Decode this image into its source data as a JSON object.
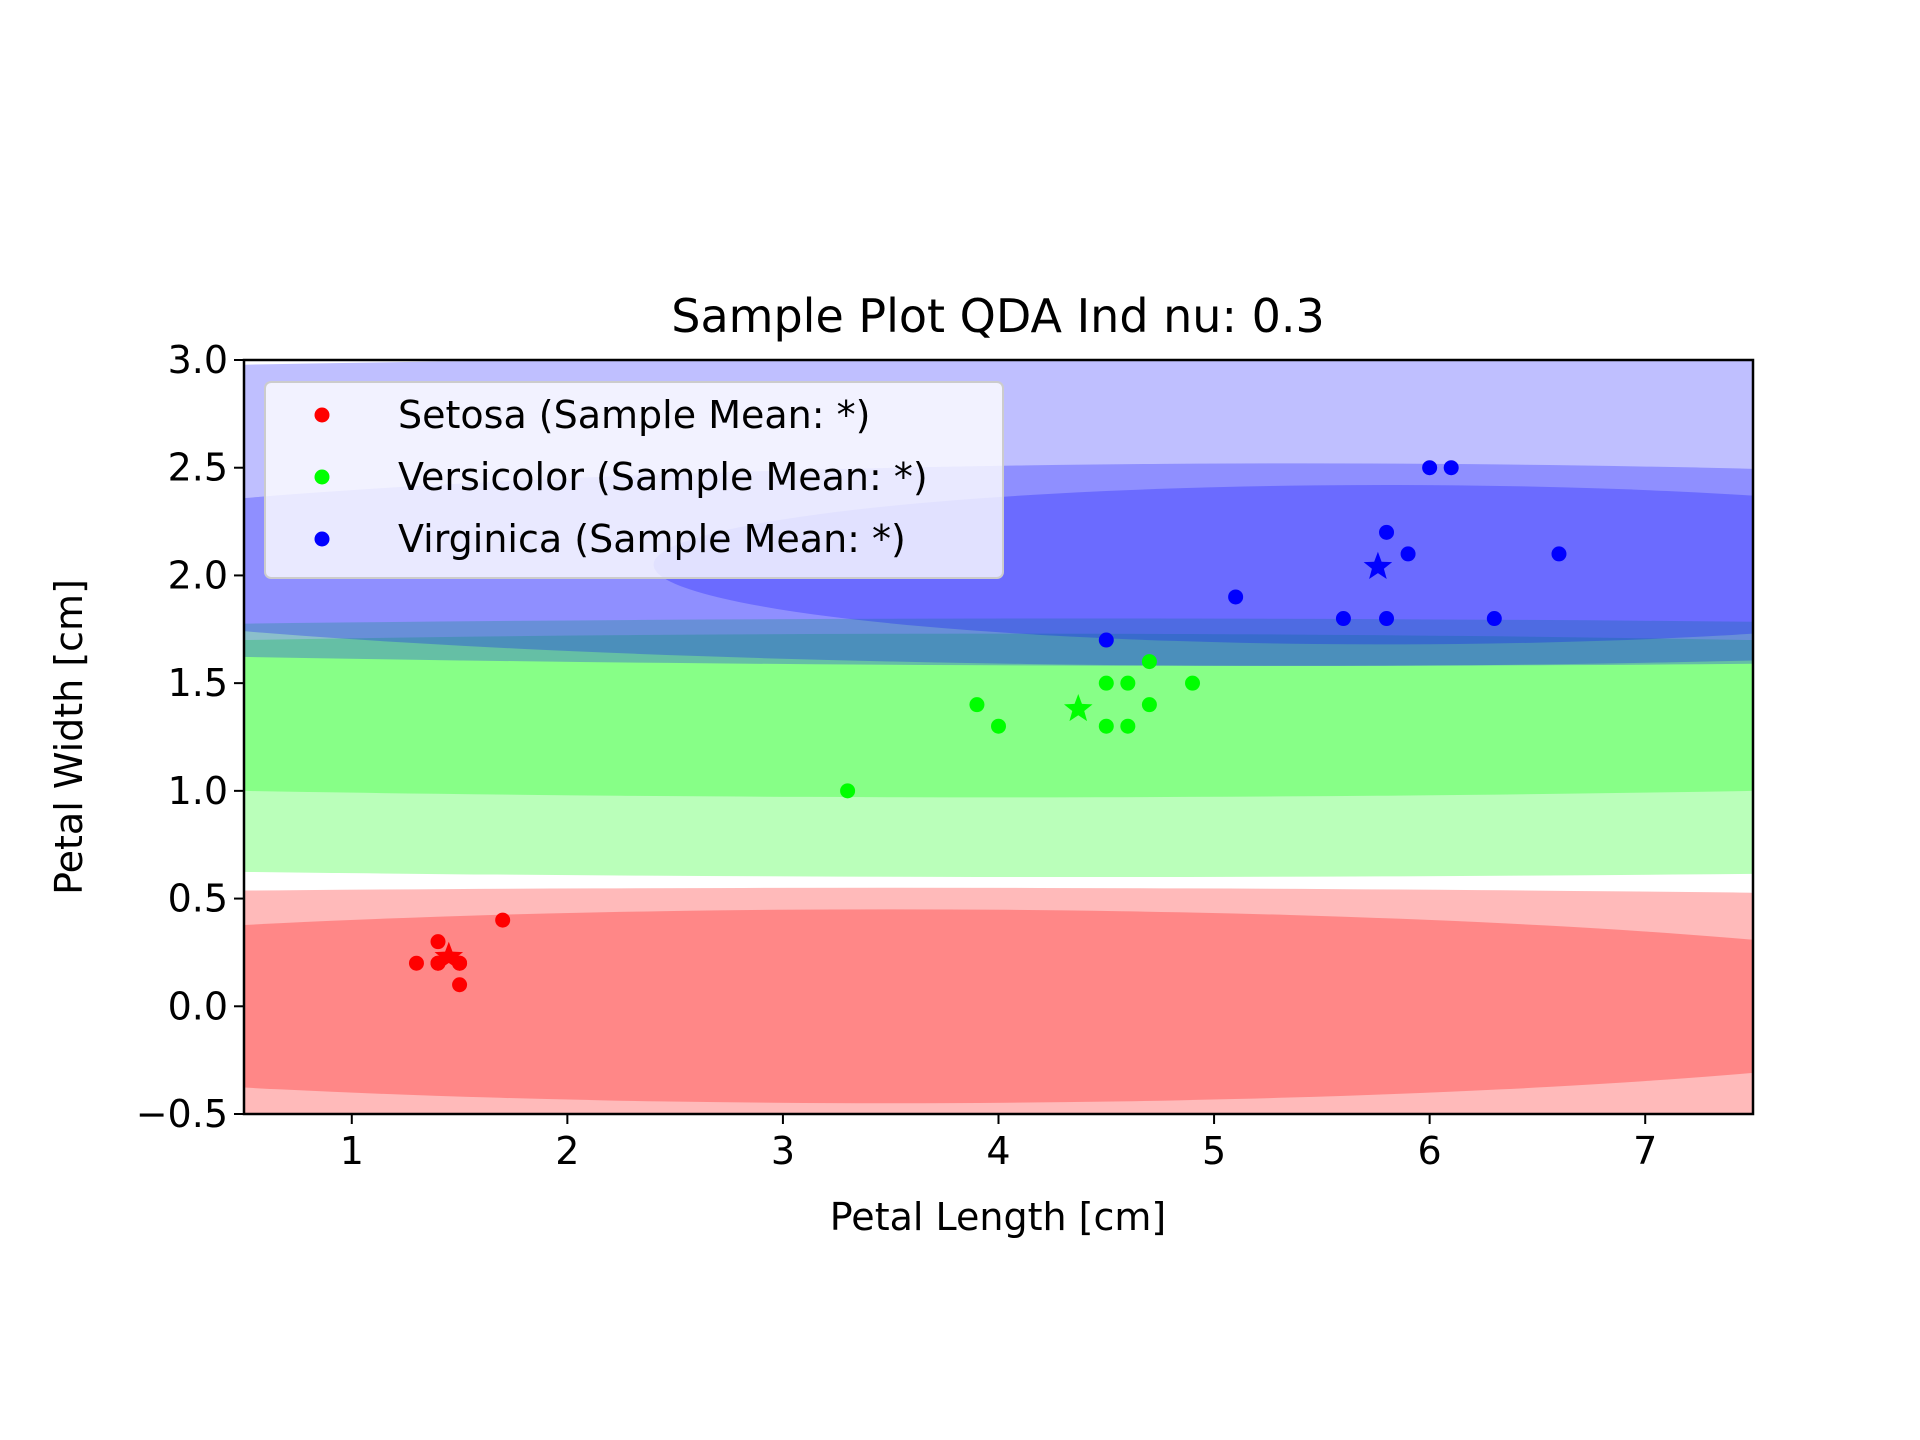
{
  "chart_data": {
    "type": "scatter",
    "title": "Sample Plot QDA Ind nu: 0.3",
    "xlabel": "Petal Length [cm]",
    "ylabel": "Petal Width [cm]",
    "xlim": [
      0.5,
      7.5
    ],
    "ylim": [
      -0.5,
      3.0
    ],
    "xticks": [
      1,
      2,
      3,
      4,
      5,
      6,
      7
    ],
    "xtick_labels": [
      "1",
      "2",
      "3",
      "4",
      "5",
      "6",
      "7"
    ],
    "yticks": [
      -0.5,
      0.0,
      0.5,
      1.0,
      1.5,
      2.0,
      2.5,
      3.0
    ],
    "ytick_labels": [
      "−0.5",
      "0.0",
      "0.5",
      "1.0",
      "1.5",
      "2.0",
      "2.5",
      "3.0"
    ],
    "grid": false,
    "legend_position": "top-left",
    "series": [
      {
        "name": "Setosa (Sample Mean: *)",
        "color": "#ff0000",
        "mean": [
          1.45,
          0.23
        ],
        "points": [
          [
            1.3,
            0.2
          ],
          [
            1.4,
            0.3
          ],
          [
            1.4,
            0.2
          ],
          [
            1.5,
            0.2
          ],
          [
            1.5,
            0.2
          ],
          [
            1.5,
            0.1
          ],
          [
            1.7,
            0.4
          ],
          [
            1.4,
            0.2
          ]
        ]
      },
      {
        "name": "Versicolor (Sample Mean: *)",
        "color": "#00ff00",
        "mean": [
          4.37,
          1.38
        ],
        "points": [
          [
            3.3,
            1.0
          ],
          [
            3.9,
            1.4
          ],
          [
            4.0,
            1.3
          ],
          [
            4.5,
            1.5
          ],
          [
            4.5,
            1.3
          ],
          [
            4.6,
            1.5
          ],
          [
            4.6,
            1.3
          ],
          [
            4.7,
            1.6
          ],
          [
            4.7,
            1.4
          ],
          [
            4.9,
            1.5
          ]
        ]
      },
      {
        "name": "Virginica (Sample Mean: *)",
        "color": "#0000ff",
        "mean": [
          5.76,
          2.04
        ],
        "points": [
          [
            4.5,
            1.7
          ],
          [
            5.1,
            1.9
          ],
          [
            5.6,
            1.8
          ],
          [
            5.8,
            1.8
          ],
          [
            5.8,
            2.2
          ],
          [
            5.9,
            2.1
          ],
          [
            6.0,
            2.5
          ],
          [
            6.1,
            2.5
          ],
          [
            6.3,
            1.8
          ],
          [
            6.6,
            2.1
          ]
        ]
      }
    ],
    "regions": [
      {
        "class": "Setosa",
        "color": "#ff0000",
        "center": [
          3.5,
          0.0
        ],
        "rx": 14.0,
        "ry": 0.55,
        "opacity": 0.27
      },
      {
        "class": "Setosa",
        "color": "#ff0000",
        "center": [
          3.5,
          0.0
        ],
        "rx": 5.5,
        "ry": 0.45,
        "opacity": 0.27
      },
      {
        "class": "Versicolor",
        "color": "#00ff00",
        "center": [
          4.4,
          1.2
        ],
        "rx": 14.0,
        "ry": 0.6,
        "opacity": 0.27
      },
      {
        "class": "Versicolor",
        "color": "#00ff00",
        "center": [
          4.0,
          1.35
        ],
        "rx": 9.0,
        "ry": 0.38,
        "opacity": 0.27
      },
      {
        "class": "Virginica",
        "color": "#0000ff",
        "center": [
          5.2,
          2.3
        ],
        "rx": 14.0,
        "ry": 0.72,
        "opacity": 0.25
      },
      {
        "class": "Virginica",
        "color": "#0000ff",
        "center": [
          5.4,
          2.05
        ],
        "rx": 6.5,
        "ry": 0.47,
        "opacity": 0.25
      },
      {
        "class": "Virginica",
        "color": "#0000ff",
        "center": [
          5.8,
          2.05
        ],
        "rx": 3.4,
        "ry": 0.37,
        "opacity": 0.25
      }
    ]
  }
}
